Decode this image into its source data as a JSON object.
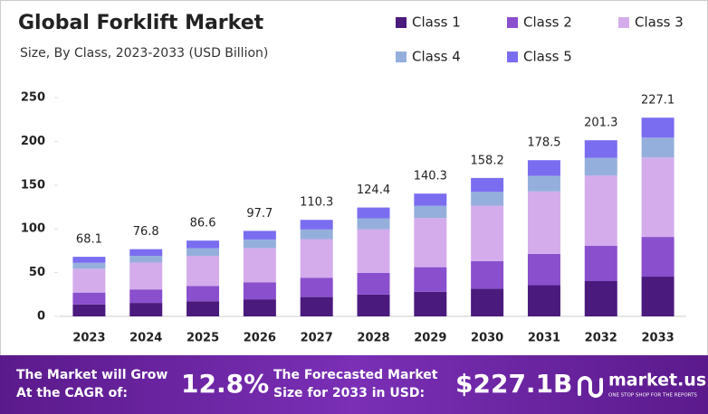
{
  "chart_data": {
    "type": "stacked_bar",
    "title": "Global Forklift Market",
    "subtitle": "Size, By Class, 2023-2033 (USD Billion)",
    "categories": [
      "2023",
      "2024",
      "2025",
      "2026",
      "2027",
      "2028",
      "2029",
      "2030",
      "2031",
      "2032",
      "2033"
    ],
    "series": [
      {
        "name": "Class 1",
        "color": "#4a1a7d",
        "values": [
          13.6,
          15.4,
          17.3,
          19.5,
          22.1,
          24.9,
          28.1,
          31.6,
          35.7,
          40.3,
          45.4
        ]
      },
      {
        "name": "Class 2",
        "color": "#8a4fcd",
        "values": [
          13.6,
          15.4,
          17.3,
          19.5,
          22.1,
          24.9,
          28.1,
          31.6,
          35.7,
          40.3,
          45.4
        ]
      },
      {
        "name": "Class 3",
        "color": "#d4acec",
        "values": [
          27.2,
          30.7,
          34.6,
          39.1,
          44.1,
          49.8,
          56.1,
          63.3,
          71.4,
          80.5,
          90.8
        ]
      },
      {
        "name": "Class 4",
        "color": "#95afdc",
        "values": [
          6.8,
          7.7,
          8.7,
          9.8,
          11.0,
          12.4,
          14.0,
          15.8,
          17.9,
          20.1,
          22.7
        ]
      },
      {
        "name": "Class 5",
        "color": "#7b6df0",
        "values": [
          6.9,
          7.6,
          8.7,
          9.8,
          11.0,
          12.4,
          14.0,
          15.9,
          17.8,
          20.1,
          22.8
        ]
      }
    ],
    "totals": [
      68.1,
      76.8,
      86.6,
      97.7,
      110.3,
      124.4,
      140.3,
      158.2,
      178.5,
      201.3,
      227.1
    ],
    "ylim": [
      0,
      250
    ],
    "yticks": [
      0,
      50,
      100,
      150,
      200,
      250
    ]
  },
  "footer": {
    "cagr_line1": "The Market will Grow",
    "cagr_line2": "At the CAGR of:",
    "cagr_value": "12.8%",
    "forecast_line1": "The Forecasted Market",
    "forecast_line2": "Size for 2033 in USD:",
    "forecast_value": "$227.1B",
    "logo": "market.us",
    "tagline": "ONE STOP SHOP FOR THE REPORTS"
  }
}
